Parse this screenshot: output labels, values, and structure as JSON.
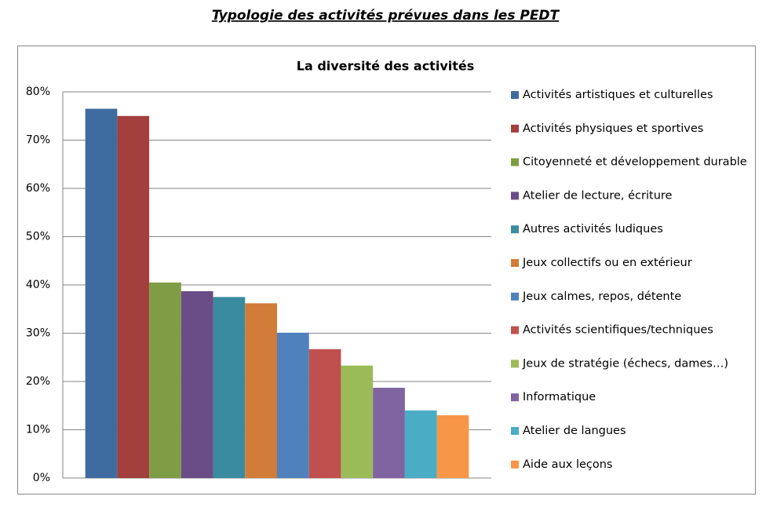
{
  "page_title": "Typologie des activités prévues dans les PEDT",
  "chart_data": {
    "type": "bar",
    "title": "La diversité des activités",
    "categories": [
      null
    ],
    "series": [
      {
        "name": "Activités artistiques et culturelles",
        "color": "#3f6ca0",
        "values": [
          76.5
        ]
      },
      {
        "name": "Activités physiques et sportives",
        "color": "#a33f3c",
        "values": [
          75
        ]
      },
      {
        "name": "Citoyenneté et développement durable",
        "color": "#7f9d45",
        "values": [
          40.5
        ]
      },
      {
        "name": "Atelier de lecture, écriture",
        "color": "#6a4d87",
        "values": [
          38.7
        ]
      },
      {
        "name": "Autres activités ludiques",
        "color": "#3a8ba0",
        "values": [
          37.5
        ]
      },
      {
        "name": "Jeux collectifs ou en extérieur",
        "color": "#d17c38",
        "values": [
          36.2
        ]
      },
      {
        "name": "Jeux calmes, repos, détente",
        "color": "#4f81bd",
        "values": [
          30.1
        ]
      },
      {
        "name": "Activités scientifiques/techniques",
        "color": "#c0504d",
        "values": [
          26.7
        ]
      },
      {
        "name": "Jeux de stratégie (échecs, dames…)",
        "color": "#9bbb59",
        "values": [
          23.3
        ]
      },
      {
        "name": "Informatique",
        "color": "#8064a2",
        "values": [
          18.7
        ]
      },
      {
        "name": "Atelier de langues",
        "color": "#4bacc6",
        "values": [
          14
        ]
      },
      {
        "name": "Aide aux leçons",
        "color": "#f79646",
        "values": [
          13
        ]
      }
    ],
    "ylim": [
      0,
      80
    ],
    "yticks": [
      {
        "value": 0,
        "label": "0%"
      },
      {
        "value": 10,
        "label": "10%"
      },
      {
        "value": 20,
        "label": "20%"
      },
      {
        "value": 30,
        "label": "30%"
      },
      {
        "value": 40,
        "label": "40%"
      },
      {
        "value": 50,
        "label": "50%"
      },
      {
        "value": 60,
        "label": "60%"
      },
      {
        "value": 70,
        "label": "70%"
      },
      {
        "value": 80,
        "label": "80%"
      }
    ],
    "grid": true,
    "legend": "right"
  }
}
